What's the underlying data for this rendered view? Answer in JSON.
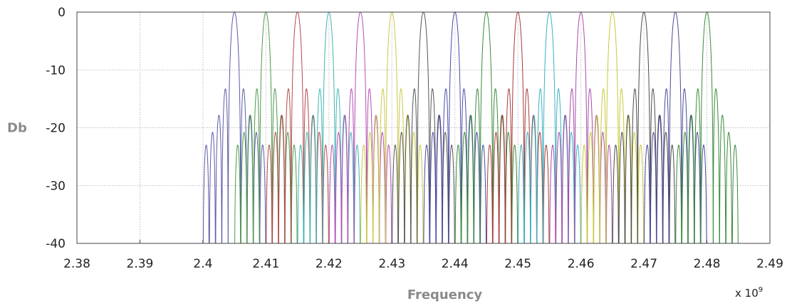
{
  "chart_data": {
    "type": "line",
    "xlabel": "Frequency",
    "ylabel": "Db",
    "x_exponent_label": "x 10",
    "x_exponent_power": "9",
    "xlim": [
      2.38,
      2.49
    ],
    "ylim": [
      -40,
      0
    ],
    "x_ticks": [
      "2.38",
      "2.39",
      "2.4",
      "2.41",
      "2.42",
      "2.43",
      "2.44",
      "2.45",
      "2.46",
      "2.47",
      "2.48",
      "2.49"
    ],
    "y_ticks": [
      "0",
      "-10",
      "-20",
      "-30",
      "-40"
    ],
    "grid": true,
    "grid_style": "dotted",
    "channel_bandwidth": 0.002,
    "series": [
      {
        "center": 2.405,
        "color": "#5b5ba8"
      },
      {
        "center": 2.41,
        "color": "#4c9a4c"
      },
      {
        "center": 2.415,
        "color": "#b24a4a"
      },
      {
        "center": 2.42,
        "color": "#3fb3b3"
      },
      {
        "center": 2.425,
        "color": "#b54cb5"
      },
      {
        "center": 2.43,
        "color": "#c9c94a"
      },
      {
        "center": 2.435,
        "color": "#555555"
      },
      {
        "center": 2.44,
        "color": "#4a4aa8"
      },
      {
        "center": 2.445,
        "color": "#3a8a3a"
      },
      {
        "center": 2.45,
        "color": "#a83a3a"
      },
      {
        "center": 2.455,
        "color": "#3ab0c0"
      },
      {
        "center": 2.46,
        "color": "#a84aa8"
      },
      {
        "center": 2.465,
        "color": "#c8c83a"
      },
      {
        "center": 2.47,
        "color": "#4a4a4a"
      },
      {
        "center": 2.475,
        "color": "#4a4a9a"
      },
      {
        "center": 2.48,
        "color": "#3a8a3a"
      }
    ]
  }
}
